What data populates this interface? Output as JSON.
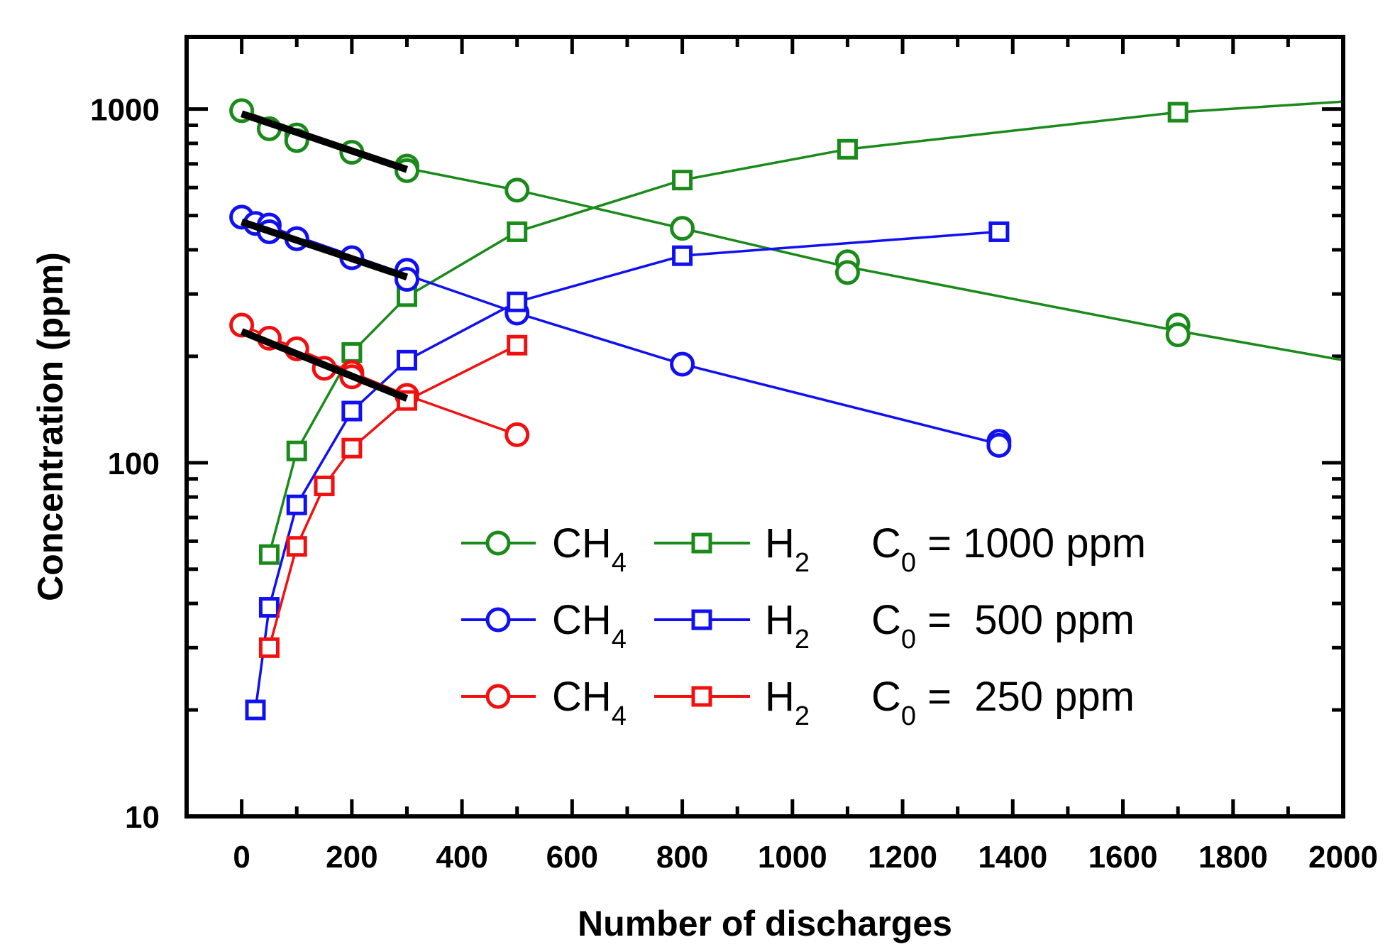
{
  "chart_data": {
    "type": "line",
    "title": "",
    "xlabel": "Number of discharges",
    "ylabel": "Concentration (ppm)",
    "xlim": [
      -100,
      2000
    ],
    "ylim": [
      10,
      1600
    ],
    "yscale": "log",
    "grid": false,
    "x_ticks": [
      "0",
      "200",
      "400",
      "600",
      "800",
      "1000",
      "1200",
      "1400",
      "1600",
      "1800",
      "2000"
    ],
    "y_ticks": [
      "10",
      "100",
      "1000"
    ],
    "colors": {
      "green": "#1a8a1a",
      "blue": "#1010f0",
      "red": "#f01010",
      "black": "#000000"
    },
    "series": [
      {
        "gas": "CH4",
        "c0": "1000 ppm",
        "color": "green",
        "marker": "circle",
        "x": [
          0,
          50,
          100,
          100,
          200,
          300,
          300,
          500,
          800,
          1100,
          1100,
          1700,
          1700
        ],
        "y": [
          990,
          880,
          845,
          815,
          755,
          690,
          670,
          590,
          460,
          370,
          345,
          245,
          230
        ],
        "curve": {
          "x": [
            0,
            300,
            500,
            800,
            1100,
            1700,
            2000
          ],
          "y": [
            990,
            680,
            590,
            460,
            358,
            236,
            195
          ]
        }
      },
      {
        "gas": "H2",
        "c0": "1000 ppm",
        "color": "green",
        "marker": "square",
        "x": [
          50,
          100,
          200,
          300,
          500,
          800,
          1100,
          1700
        ],
        "y": [
          55,
          108,
          205,
          295,
          450,
          630,
          770,
          980
        ],
        "curve": {
          "x": [
            50,
            100,
            200,
            300,
            500,
            800,
            1100,
            1700,
            2000
          ],
          "y": [
            55,
            108,
            205,
            295,
            450,
            630,
            770,
            980,
            1050
          ]
        }
      },
      {
        "gas": "CH4",
        "c0": "500 ppm",
        "color": "blue",
        "marker": "circle",
        "x": [
          0,
          25,
          50,
          50,
          100,
          200,
          300,
          300,
          500,
          800,
          1375,
          1375
        ],
        "y": [
          495,
          475,
          470,
          450,
          430,
          380,
          350,
          330,
          265,
          190,
          115,
          112
        ],
        "curve": {
          "x": [
            0,
            300,
            500,
            800,
            1375
          ],
          "y": [
            495,
            340,
            265,
            190,
            113
          ]
        }
      },
      {
        "gas": "H2",
        "c0": "500 ppm",
        "color": "blue",
        "marker": "square",
        "x": [
          25,
          50,
          100,
          200,
          300,
          500,
          800,
          1375
        ],
        "y": [
          20,
          39,
          76,
          140,
          195,
          285,
          385,
          450
        ],
        "curve": {
          "x": [
            25,
            50,
            100,
            200,
            300,
            500,
            800,
            1375
          ],
          "y": [
            20,
            39,
            76,
            140,
            195,
            285,
            385,
            450
          ]
        }
      },
      {
        "gas": "CH4",
        "c0": "250 ppm",
        "color": "red",
        "marker": "circle",
        "x": [
          0,
          50,
          100,
          150,
          200,
          200,
          300,
          500
        ],
        "y": [
          245,
          225,
          210,
          185,
          180,
          175,
          155,
          120
        ],
        "curve": {
          "x": [
            0,
            100,
            200,
            300,
            500
          ],
          "y": [
            245,
            210,
            180,
            155,
            120
          ]
        }
      },
      {
        "gas": "H2",
        "c0": "250 ppm",
        "color": "red",
        "marker": "square",
        "x": [
          50,
          100,
          150,
          200,
          300,
          500
        ],
        "y": [
          30,
          58,
          86,
          110,
          150,
          215
        ],
        "curve": {
          "x": [
            50,
            100,
            150,
            200,
            300,
            500
          ],
          "y": [
            30,
            58,
            86,
            110,
            150,
            215
          ]
        }
      }
    ],
    "fit_lines": [
      {
        "color": "black",
        "x": [
          0,
          300
        ],
        "y": [
          970,
          675
        ]
      },
      {
        "color": "black",
        "x": [
          0,
          300
        ],
        "y": [
          480,
          335
        ]
      },
      {
        "color": "black",
        "x": [
          0,
          300
        ],
        "y": [
          235,
          152
        ]
      }
    ],
    "legend": {
      "placement": "lower-center",
      "rows": [
        {
          "color": "green",
          "ch4_main": "CH",
          "ch4_sub": "4",
          "h2_main": "H",
          "h2_sub": "2",
          "c_main": "C",
          "c_sub": "0",
          "c_text": " = 1000 ppm"
        },
        {
          "color": "blue",
          "ch4_main": "CH",
          "ch4_sub": "4",
          "h2_main": "H",
          "h2_sub": "2",
          "c_main": "C",
          "c_sub": "0",
          "c_text": " =  500 ppm"
        },
        {
          "color": "red",
          "ch4_main": "CH",
          "ch4_sub": "4",
          "h2_main": "H",
          "h2_sub": "2",
          "c_main": "C",
          "c_sub": "0",
          "c_text": " =  250 ppm"
        }
      ]
    }
  }
}
